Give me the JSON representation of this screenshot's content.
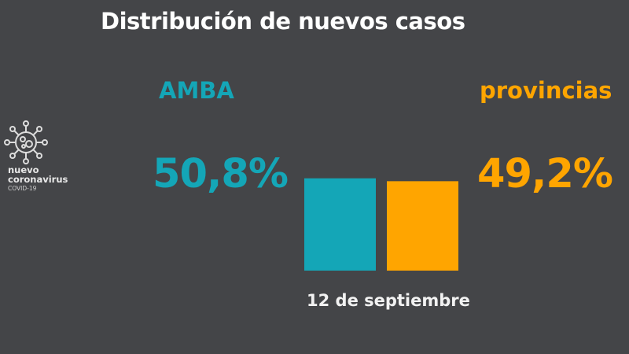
{
  "title": "Distribución de nuevos casos",
  "logo": {
    "icon": "virus-icon",
    "line1": "nuevo",
    "line2": "coronavirus",
    "line3": "COVID-19"
  },
  "colors": {
    "amba": "#14a6b7",
    "provincias": "#ffa500",
    "background": "#444548"
  },
  "chart_data": {
    "type": "bar",
    "title": "Distribución de nuevos casos",
    "xlabel": "12 de septiembre",
    "categories": [
      "AMBA",
      "provincias"
    ],
    "values": [
      50.8,
      49.2
    ],
    "value_labels": [
      "50,8%",
      "49,2%"
    ],
    "unit": "%",
    "grid": false
  }
}
